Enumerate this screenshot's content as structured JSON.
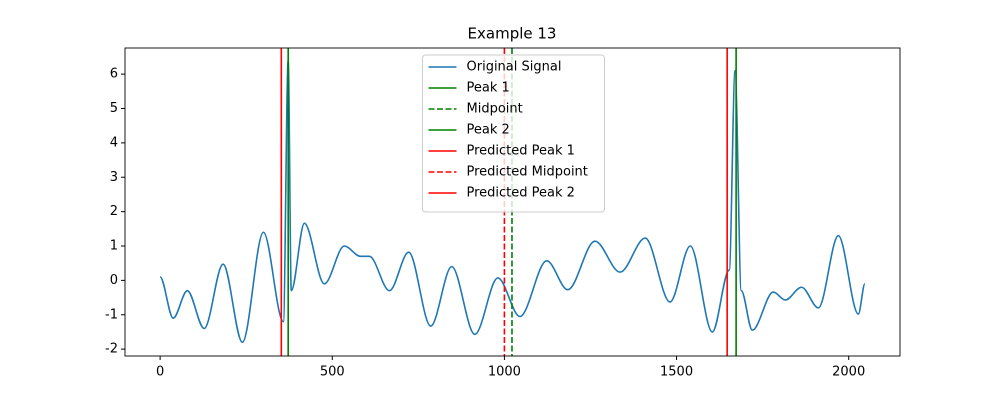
{
  "chart_data": {
    "type": "line",
    "title": "Example 13",
    "x": [
      0,
      38,
      79,
      128,
      183,
      239,
      300,
      358,
      372,
      381,
      419,
      477,
      535,
      582,
      608,
      666,
      722,
      786,
      847,
      914,
      981,
      1045,
      1123,
      1184,
      1263,
      1336,
      1409,
      1481,
      1540,
      1604,
      1653,
      1670,
      1688,
      1720,
      1781,
      1816,
      1863,
      1912,
      1970,
      2028,
      2047
    ],
    "series": [
      {
        "name": "Original Signal",
        "color": "#1f77b4",
        "values": [
          0.1,
          -1.1,
          -0.3,
          -1.4,
          0.47,
          -1.8,
          1.4,
          -1.2,
          6.4,
          -0.3,
          1.66,
          -0.1,
          1.0,
          0.7,
          0.7,
          -0.3,
          0.82,
          -1.33,
          0.4,
          -1.57,
          0.07,
          -1.05,
          0.57,
          -0.27,
          1.14,
          0.24,
          1.23,
          -0.63,
          1.0,
          -1.5,
          0.3,
          6.1,
          -0.3,
          -1.45,
          -0.34,
          -0.57,
          -0.2,
          -0.8,
          1.3,
          -0.98,
          -0.1
        ]
      }
    ],
    "vlines": [
      {
        "name": "Peak 1",
        "x": 372,
        "color": "#008000",
        "dashed": false
      },
      {
        "name": "Midpoint",
        "x": 1022,
        "color": "#008000",
        "dashed": true
      },
      {
        "name": "Peak 2",
        "x": 1673,
        "color": "#008000",
        "dashed": false
      },
      {
        "name": "Predicted Peak 1",
        "x": 352,
        "color": "#ff0000",
        "dashed": false
      },
      {
        "name": "Predicted Midpoint",
        "x": 1000,
        "color": "#ff0000",
        "dashed": true
      },
      {
        "name": "Predicted Peak 2",
        "x": 1647,
        "color": "#ff0000",
        "dashed": false
      }
    ],
    "xlim": [
      -102,
      2149
    ],
    "ylim": [
      -2.2,
      6.76
    ],
    "xticks": [
      0,
      500,
      1000,
      1500,
      2000
    ],
    "yticks": [
      -2,
      -1,
      0,
      1,
      2,
      3,
      4,
      5,
      6
    ],
    "legend": "upper center"
  }
}
